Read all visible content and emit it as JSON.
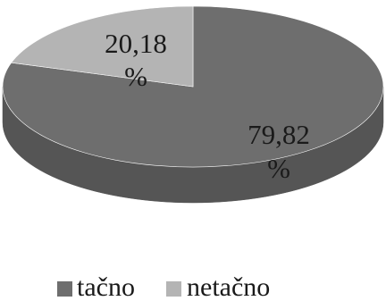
{
  "chart_data": {
    "type": "pie",
    "style": "3d",
    "slices": [
      {
        "label": "tačno",
        "value": 79.82,
        "value_text": "79,82",
        "unit_text": "%",
        "color": "#6e6e6e",
        "side_color": "#555555"
      },
      {
        "label": "netačno",
        "value": 20.18,
        "value_text": "20,18",
        "unit_text": "%",
        "color": "#b4b4b4",
        "side_color": "#909090"
      }
    ],
    "legend": {
      "placement": "bottom",
      "items": [
        {
          "label": "tačno",
          "color": "#6e6e6e"
        },
        {
          "label": "netačno",
          "color": "#b4b4b4"
        }
      ]
    }
  }
}
